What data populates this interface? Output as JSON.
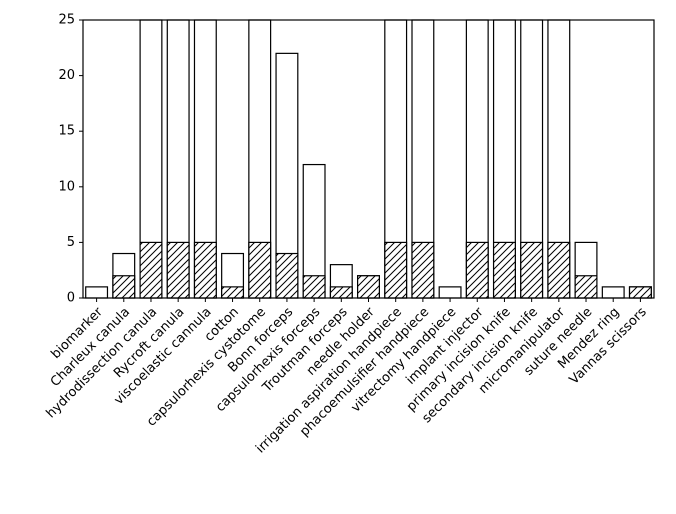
{
  "chart_data": {
    "type": "bar",
    "title": "",
    "xlabel": "",
    "ylabel": "",
    "ylim": [
      0,
      25
    ],
    "yticks": [
      0,
      5,
      10,
      15,
      20,
      25
    ],
    "grid": false,
    "categories": [
      "biomarker",
      "Charleux canula",
      "hydrodissection canula",
      "Rycroft canula",
      "viscoelastic cannula",
      "cotton",
      "capsulorhexis cystotome",
      "Bonn forceps",
      "capsulorhexis forceps",
      "Troutman forceps",
      "needle holder",
      "irrigation aspiration handpiece",
      "phacoemulsifier handpiece",
      "vitrectomy handpiece",
      "implant injector",
      "primary incision knife",
      "secondary incision knife",
      "micromanipulator",
      "suture needle",
      "Mendez ring",
      "Vannas scissors"
    ],
    "series": [
      {
        "style": "white bar with black outline",
        "values": [
          1,
          4,
          25,
          25,
          25,
          4,
          25,
          22,
          12,
          3,
          2,
          25,
          25,
          1,
          25,
          25,
          25,
          25,
          5,
          1,
          1
        ]
      },
      {
        "style": "hatched bar (diagonal lines)",
        "values": [
          0,
          2,
          5,
          5,
          5,
          1,
          5,
          4,
          2,
          1,
          2,
          5,
          5,
          0,
          5,
          5,
          5,
          5,
          2,
          0,
          1
        ]
      }
    ]
  }
}
